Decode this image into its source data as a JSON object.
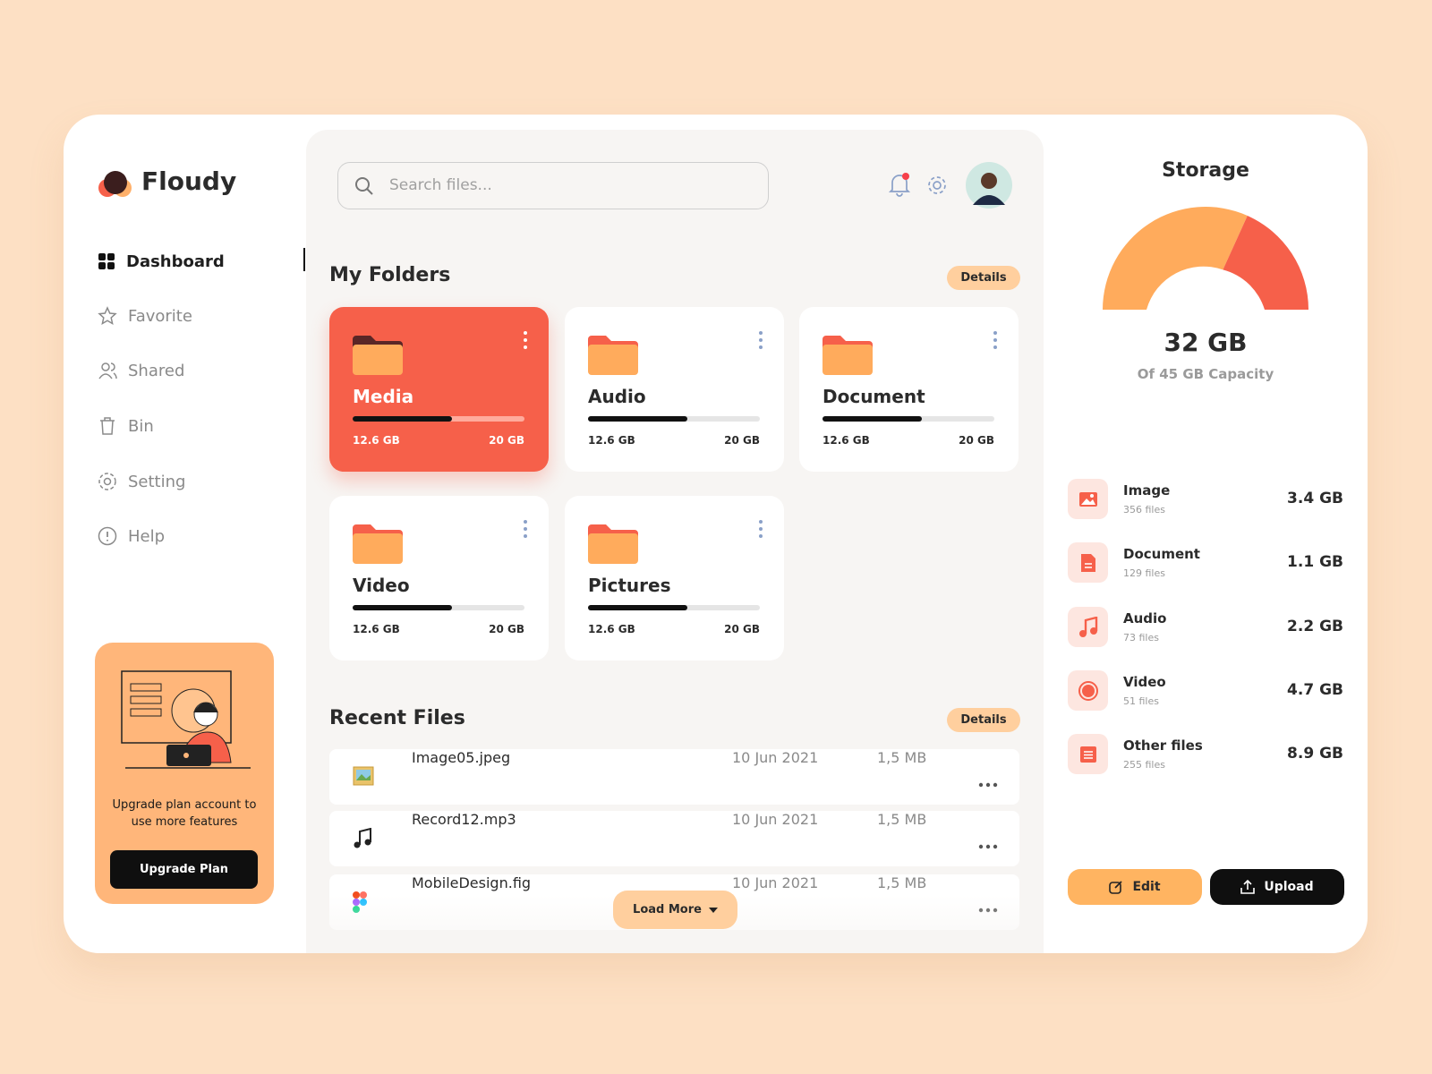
{
  "brand": "Floudy",
  "nav": [
    "Dashboard",
    "Favorite",
    "Shared",
    "Bin",
    "Setting",
    "Help"
  ],
  "promo": {
    "text": "Upgrade plan account to use more features",
    "button": "Upgrade Plan"
  },
  "search": {
    "placeholder": "Search files..."
  },
  "folders": {
    "title": "My Folders",
    "details": "Details",
    "items": [
      {
        "name": "Media",
        "used": "12.6 GB",
        "total": "20 GB"
      },
      {
        "name": "Audio",
        "used": "12.6 GB",
        "total": "20 GB"
      },
      {
        "name": "Document",
        "used": "12.6 GB",
        "total": "20 GB"
      },
      {
        "name": "Video",
        "used": "12.6 GB",
        "total": "20 GB"
      },
      {
        "name": "Pictures",
        "used": "12.6 GB",
        "total": "20 GB"
      }
    ]
  },
  "recent": {
    "title": "Recent Files",
    "details": "Details",
    "load_more": "Load More",
    "files": [
      {
        "name": "Image05.jpeg",
        "date": "10 Jun 2021",
        "size": "1,5 MB"
      },
      {
        "name": "Record12.mp3",
        "date": "10 Jun 2021",
        "size": "1,5 MB"
      },
      {
        "name": "MobileDesign.fig",
        "date": "10 Jun 2021",
        "size": "1,5 MB"
      }
    ]
  },
  "storage": {
    "title": "Storage",
    "used": "32 GB",
    "capacity": "Of 45 GB Capacity",
    "edit": "Edit",
    "upload": "Upload",
    "types": [
      {
        "name": "Image",
        "files": "356 files",
        "size": "3.4 GB"
      },
      {
        "name": "Document",
        "files": "129 files",
        "size": "1.1 GB"
      },
      {
        "name": "Audio",
        "files": "73 files",
        "size": "2.2 GB"
      },
      {
        "name": "Video",
        "files": "51 files",
        "size": "4.7 GB"
      },
      {
        "name": "Other files",
        "files": "255 files",
        "size": "8.9 GB"
      }
    ]
  }
}
